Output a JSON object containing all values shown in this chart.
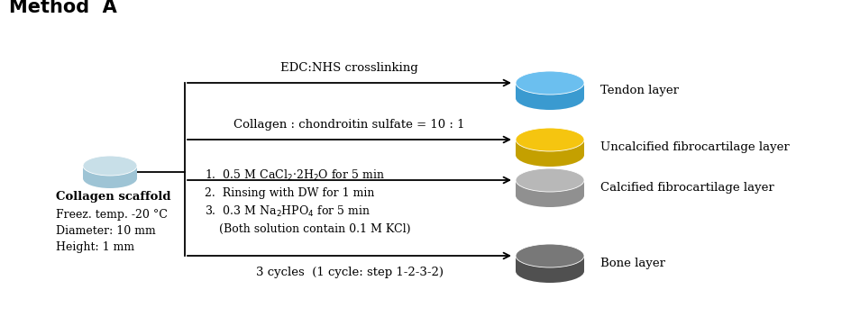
{
  "title": "Method  A",
  "title_fontsize": 15,
  "title_fontweight": "bold",
  "bg_color": "#ffffff",
  "scaffold_label_bold": "Collagen scaffold",
  "scaffold_label_rest": "Freez. temp. -20 °C\nDiameter: 10 mm\nHeight: 1 mm",
  "scaffold_color_top": "#c8dfe8",
  "scaffold_color_side": "#9ec4d5",
  "branch_labels": [
    "EDC:NHS crosslinking",
    "Collagen : chondroitin sulfate = 10 : 1",
    "1.  0.5 M CaCl$_2$·2H$_2$O for 5 min\n2.  Rinsing with DW for 1 min\n3.  0.3 M Na$_2$HPO$_4$ for 5 min\n    (Both solution contain 0.1 M KCl)",
    "3 cycles  (1 cycle: step 1-2-3-2)"
  ],
  "layer_labels": [
    "Tendon layer",
    "Uncalcified fibrocartilage layer",
    "Calcified fibrocartilage layer",
    "Bone layer"
  ],
  "layer_colors_top": [
    "#6bbfef",
    "#f5c510",
    "#b8b8b8",
    "#787878"
  ],
  "layer_colors_side": [
    "#3a9ad0",
    "#c4a000",
    "#909090",
    "#505050"
  ],
  "arrow_color": "#000000",
  "line_color": "#000000",
  "text_color": "#000000",
  "fontsize": 9.5,
  "fontfamily": "DejaVu Serif"
}
